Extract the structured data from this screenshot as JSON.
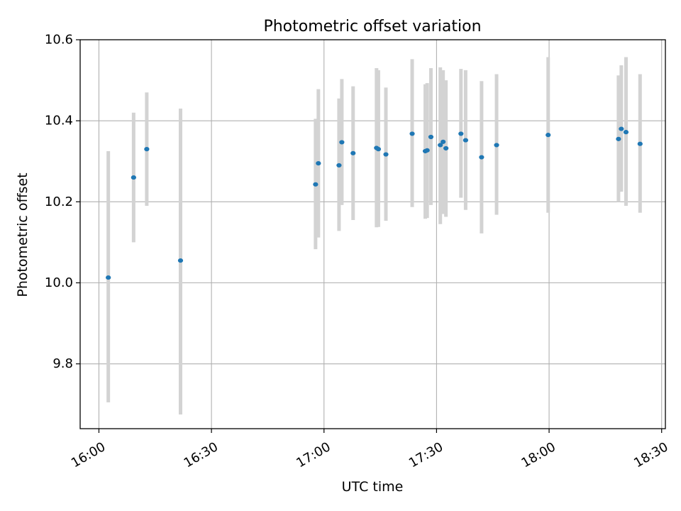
{
  "chart_data": {
    "type": "scatter",
    "title": "Photometric offset variation",
    "xlabel": "UTC time",
    "ylabel": "Photometric offset",
    "x_unit": "UTC time (HH:MM)",
    "xlim": [
      "15:55",
      "18:31"
    ],
    "ylim": [
      9.64,
      10.6
    ],
    "x_ticks": [
      "16:00",
      "16:30",
      "17:00",
      "17:30",
      "18:00",
      "18:30"
    ],
    "y_ticks": [
      9.8,
      10.0,
      10.2,
      10.4,
      10.6
    ],
    "y_tick_labels": [
      "9.8",
      "10.0",
      "10.2",
      "10.4",
      "10.6"
    ],
    "grid": true,
    "point_color": "#1f77b4",
    "errorbar_color": "#d3d3d3",
    "points": [
      {
        "time": "16:02:30",
        "y": 10.013,
        "err_low": 9.705,
        "err_high": 10.325
      },
      {
        "time": "16:09:15",
        "y": 10.26,
        "err_low": 10.1,
        "err_high": 10.42
      },
      {
        "time": "16:12:45",
        "y": 10.33,
        "err_low": 10.19,
        "err_high": 10.47
      },
      {
        "time": "16:21:45",
        "y": 10.055,
        "err_low": 9.675,
        "err_high": 10.43
      },
      {
        "time": "16:57:45",
        "y": 10.243,
        "err_low": 10.083,
        "err_high": 10.405
      },
      {
        "time": "16:58:30",
        "y": 10.295,
        "err_low": 10.112,
        "err_high": 10.478
      },
      {
        "time": "17:04:00",
        "y": 10.29,
        "err_low": 10.128,
        "err_high": 10.455
      },
      {
        "time": "17:04:45",
        "y": 10.347,
        "err_low": 10.192,
        "err_high": 10.503
      },
      {
        "time": "17:07:45",
        "y": 10.32,
        "err_low": 10.155,
        "err_high": 10.485
      },
      {
        "time": "17:14:00",
        "y": 10.333,
        "err_low": 10.137,
        "err_high": 10.53
      },
      {
        "time": "17:14:30",
        "y": 10.33,
        "err_low": 10.138,
        "err_high": 10.525
      },
      {
        "time": "17:16:30",
        "y": 10.317,
        "err_low": 10.153,
        "err_high": 10.482
      },
      {
        "time": "17:23:30",
        "y": 10.368,
        "err_low": 10.187,
        "err_high": 10.552
      },
      {
        "time": "17:27:00",
        "y": 10.325,
        "err_low": 10.158,
        "err_high": 10.49
      },
      {
        "time": "17:27:30",
        "y": 10.327,
        "err_low": 10.16,
        "err_high": 10.493
      },
      {
        "time": "17:28:30",
        "y": 10.36,
        "err_low": 10.192,
        "err_high": 10.53
      },
      {
        "time": "17:31:00",
        "y": 10.34,
        "err_low": 10.145,
        "err_high": 10.532
      },
      {
        "time": "17:31:45",
        "y": 10.348,
        "err_low": 10.17,
        "err_high": 10.525
      },
      {
        "time": "17:32:30",
        "y": 10.332,
        "err_low": 10.163,
        "err_high": 10.5
      },
      {
        "time": "17:36:30",
        "y": 10.368,
        "err_low": 10.21,
        "err_high": 10.528
      },
      {
        "time": "17:37:45",
        "y": 10.352,
        "err_low": 10.18,
        "err_high": 10.525
      },
      {
        "time": "17:42:00",
        "y": 10.31,
        "err_low": 10.122,
        "err_high": 10.498
      },
      {
        "time": "17:46:00",
        "y": 10.34,
        "err_low": 10.168,
        "err_high": 10.515
      },
      {
        "time": "17:59:45",
        "y": 10.365,
        "err_low": 10.173,
        "err_high": 10.557
      },
      {
        "time": "18:18:30",
        "y": 10.355,
        "err_low": 10.2,
        "err_high": 10.512
      },
      {
        "time": "18:19:15",
        "y": 10.38,
        "err_low": 10.225,
        "err_high": 10.537
      },
      {
        "time": "18:20:30",
        "y": 10.372,
        "err_low": 10.19,
        "err_high": 10.557
      },
      {
        "time": "18:24:15",
        "y": 10.343,
        "err_low": 10.173,
        "err_high": 10.515
      }
    ]
  }
}
